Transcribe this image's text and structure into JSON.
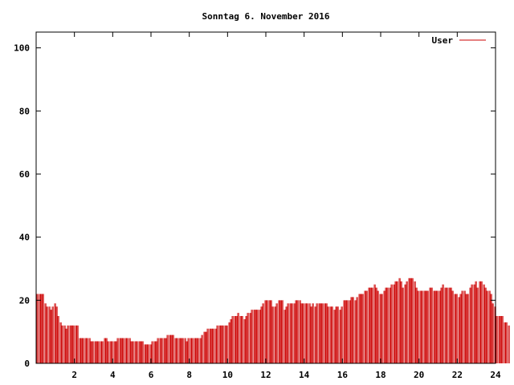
{
  "chart_data": {
    "type": "bar",
    "title": "Sonntag 6. November 2016",
    "xlabel": "",
    "ylabel": "",
    "xlim": [
      0,
      24
    ],
    "ylim": [
      0,
      105
    ],
    "x_ticks": [
      "2",
      "4",
      "6",
      "8",
      "10",
      "12",
      "14",
      "16",
      "18",
      "20",
      "22",
      "24"
    ],
    "y_ticks": [
      "0",
      "20",
      "40",
      "60",
      "80",
      "100"
    ],
    "grid": false,
    "legend_position": "top-right",
    "series": [
      {
        "name": "User",
        "color": "#cc0000",
        "sample_interval_hours": 0.1,
        "values": [
          22,
          22,
          22,
          22,
          19,
          18,
          18,
          17,
          18,
          19,
          18,
          15,
          13,
          12,
          12,
          11,
          12,
          12,
          12,
          12,
          12,
          12,
          8,
          8,
          8,
          8,
          8,
          8,
          7,
          7,
          7,
          7,
          7,
          7,
          7,
          8,
          8,
          7,
          7,
          7,
          7,
          7,
          8,
          8,
          8,
          8,
          8,
          8,
          8,
          7,
          7,
          7,
          7,
          7,
          7,
          7,
          6,
          6,
          6,
          6,
          7,
          7,
          7,
          8,
          8,
          8,
          8,
          8,
          9,
          9,
          9,
          9,
          8,
          8,
          8,
          8,
          8,
          8,
          7,
          8,
          8,
          8,
          8,
          8,
          8,
          8,
          9,
          10,
          10,
          11,
          11,
          11,
          11,
          11,
          12,
          12,
          12,
          12,
          12,
          12,
          13,
          14,
          15,
          15,
          15,
          16,
          15,
          15,
          14,
          15,
          16,
          16,
          17,
          17,
          17,
          17,
          17,
          18,
          19,
          20,
          20,
          20,
          20,
          18,
          18,
          19,
          20,
          20,
          20,
          17,
          18,
          19,
          19,
          19,
          19,
          20,
          20,
          20,
          19,
          19,
          19,
          19,
          19,
          18,
          19,
          18,
          19,
          19,
          19,
          19,
          19,
          19,
          18,
          18,
          18,
          17,
          18,
          18,
          17,
          18,
          20,
          20,
          20,
          20,
          21,
          21,
          20,
          21,
          22,
          22,
          22,
          23,
          23,
          24,
          24,
          24,
          25,
          24,
          23,
          22,
          22,
          23,
          24,
          24,
          24,
          25,
          25,
          26,
          26,
          27,
          26,
          24,
          25,
          26,
          27,
          27,
          27,
          26,
          24,
          23,
          23,
          23,
          23,
          23,
          23,
          24,
          24,
          23,
          23,
          23,
          23,
          24,
          25,
          24,
          24,
          24,
          24,
          23,
          22,
          22,
          21,
          22,
          23,
          23,
          22,
          22,
          24,
          25,
          25,
          26,
          24,
          26,
          26,
          25,
          24,
          23,
          23,
          22,
          19,
          18,
          15,
          15,
          15,
          15,
          13,
          13,
          12
        ]
      }
    ]
  }
}
